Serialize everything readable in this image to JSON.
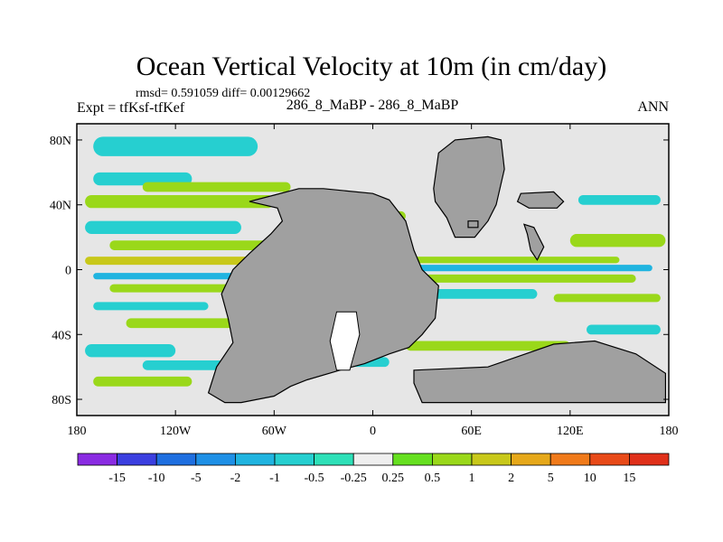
{
  "chart_data": {
    "type": "heatmap",
    "title": "Ocean Vertical Velocity at 10m (in cm/day)",
    "stats_text": "rmsd= 0.591059 diff= 0.00129662",
    "left_label": "Expt = tfKsf-tfKef",
    "center_label": "286_8_MaBP - 286_8_MaBP",
    "right_label": "ANN",
    "xlim": [
      -180,
      180
    ],
    "ylim": [
      -90,
      90
    ],
    "x_ticks": [
      {
        "value": -180,
        "label": "180"
      },
      {
        "value": -120,
        "label": "120W"
      },
      {
        "value": -60,
        "label": "60W"
      },
      {
        "value": 0,
        "label": "0"
      },
      {
        "value": 60,
        "label": "60E"
      },
      {
        "value": 120,
        "label": "120E"
      },
      {
        "value": 180,
        "label": "180"
      }
    ],
    "y_ticks": [
      {
        "value": 80,
        "label": "80N"
      },
      {
        "value": 40,
        "label": "40N"
      },
      {
        "value": 0,
        "label": "0"
      },
      {
        "value": -40,
        "label": "40S"
      },
      {
        "value": -80,
        "label": "80S"
      }
    ],
    "colorbar_labels": [
      "-15",
      "-10",
      "-5",
      "-2",
      "-1",
      "-0.5",
      "-0.25",
      "0.25",
      "0.5",
      "1",
      "2",
      "5",
      "10",
      "15"
    ],
    "colorbar_colors": [
      "#8a2be2",
      "#3b3fe0",
      "#1e6fe0",
      "#1e90e6",
      "#20b4e0",
      "#26cfd0",
      "#2ee0b8",
      "#efefef",
      "#66e020",
      "#9ad81a",
      "#c8c81a",
      "#e6a81a",
      "#f07a1a",
      "#e84a18",
      "#e0301a"
    ],
    "land_color": "#a0a0a0",
    "zero_band_color": "#e6e6e6",
    "bands": [
      {
        "lon": [
          -170,
          -70
        ],
        "lat": [
          70,
          82
        ],
        "level": "-0.5"
      },
      {
        "lon": [
          -170,
          -110
        ],
        "lat": [
          52,
          60
        ],
        "level": "-0.5"
      },
      {
        "lon": [
          -140,
          -50
        ],
        "lat": [
          48,
          54
        ],
        "level": "0.5"
      },
      {
        "lon": [
          -175,
          -60
        ],
        "lat": [
          38,
          46
        ],
        "level": "0.5"
      },
      {
        "lon": [
          -175,
          -80
        ],
        "lat": [
          22,
          30
        ],
        "level": "-0.5"
      },
      {
        "lon": [
          -160,
          -60
        ],
        "lat": [
          12,
          18
        ],
        "level": "0.5"
      },
      {
        "lon": [
          -175,
          -40
        ],
        "lat": [
          3,
          8
        ],
        "level": "1"
      },
      {
        "lon": [
          -170,
          -40
        ],
        "lat": [
          -6,
          -2
        ],
        "level": "-1"
      },
      {
        "lon": [
          -160,
          -60
        ],
        "lat": [
          -14,
          -9
        ],
        "level": "0.5"
      },
      {
        "lon": [
          -170,
          -100
        ],
        "lat": [
          -25,
          -20
        ],
        "level": "-0.5"
      },
      {
        "lon": [
          -150,
          -70
        ],
        "lat": [
          -36,
          -30
        ],
        "level": "0.5"
      },
      {
        "lon": [
          -175,
          -120
        ],
        "lat": [
          -54,
          -46
        ],
        "level": "-0.5"
      },
      {
        "lon": [
          -140,
          -80
        ],
        "lat": [
          -62,
          -56
        ],
        "level": "-0.5"
      },
      {
        "lon": [
          -170,
          -110
        ],
        "lat": [
          -72,
          -66
        ],
        "level": "0.5"
      },
      {
        "lon": [
          10,
          150
        ],
        "lat": [
          4,
          8
        ],
        "level": "0.5"
      },
      {
        "lon": [
          15,
          170
        ],
        "lat": [
          -1,
          3
        ],
        "level": "-1"
      },
      {
        "lon": [
          20,
          160
        ],
        "lat": [
          -8,
          -3
        ],
        "level": "0.5"
      },
      {
        "lon": [
          30,
          100
        ],
        "lat": [
          -18,
          -12
        ],
        "level": "-0.5"
      },
      {
        "lon": [
          110,
          175
        ],
        "lat": [
          -20,
          -15
        ],
        "level": "0.5"
      },
      {
        "lon": [
          20,
          120
        ],
        "lat": [
          -50,
          -44
        ],
        "level": "0.5"
      },
      {
        "lon": [
          130,
          175
        ],
        "lat": [
          -40,
          -34
        ],
        "level": "-0.5"
      },
      {
        "lon": [
          120,
          178
        ],
        "lat": [
          14,
          22
        ],
        "level": "0.5"
      },
      {
        "lon": [
          125,
          175
        ],
        "lat": [
          40,
          46
        ],
        "level": "-0.5"
      },
      {
        "lon": [
          -40,
          10
        ],
        "lat": [
          -60,
          -54
        ],
        "level": "-0.5"
      },
      {
        "lon": [
          -40,
          20
        ],
        "lat": [
          30,
          36
        ],
        "level": "0.5"
      }
    ],
    "land": [
      {
        "name": "americas-africa",
        "lonlat": [
          [
            -75,
            42
          ],
          [
            -60,
            46
          ],
          [
            -45,
            50
          ],
          [
            -30,
            50
          ],
          [
            0,
            47
          ],
          [
            10,
            43
          ],
          [
            20,
            30
          ],
          [
            25,
            12
          ],
          [
            30,
            0
          ],
          [
            40,
            -10
          ],
          [
            38,
            -30
          ],
          [
            30,
            -40
          ],
          [
            22,
            -48
          ],
          [
            10,
            -52
          ],
          [
            -5,
            -58
          ],
          [
            -20,
            -62
          ],
          [
            -40,
            -68
          ],
          [
            -50,
            -72
          ],
          [
            -60,
            -78
          ],
          [
            -80,
            -82
          ],
          [
            -90,
            -82
          ],
          [
            -100,
            -76
          ],
          [
            -95,
            -60
          ],
          [
            -85,
            -45
          ],
          [
            -88,
            -30
          ],
          [
            -92,
            -15
          ],
          [
            -85,
            0
          ],
          [
            -75,
            10
          ],
          [
            -62,
            22
          ],
          [
            -55,
            30
          ],
          [
            -58,
            38
          ]
        ]
      },
      {
        "name": "north-polar-continent",
        "lonlat": [
          [
            37,
            50
          ],
          [
            40,
            72
          ],
          [
            50,
            80
          ],
          [
            70,
            82
          ],
          [
            78,
            80
          ],
          [
            80,
            62
          ],
          [
            75,
            40
          ],
          [
            70,
            30
          ],
          [
            62,
            20
          ],
          [
            50,
            20
          ],
          [
            45,
            32
          ],
          [
            38,
            42
          ]
        ]
      },
      {
        "name": "east-island",
        "lonlat": [
          [
            90,
            47
          ],
          [
            110,
            48
          ],
          [
            116,
            42
          ],
          [
            112,
            38
          ],
          [
            95,
            38
          ],
          [
            88,
            42
          ]
        ]
      },
      {
        "name": "east-peninsula",
        "lonlat": [
          [
            92,
            28
          ],
          [
            98,
            26
          ],
          [
            104,
            14
          ],
          [
            100,
            6
          ],
          [
            96,
            12
          ],
          [
            94,
            22
          ]
        ]
      },
      {
        "name": "south-polar-continent",
        "lonlat": [
          [
            25,
            -62
          ],
          [
            70,
            -60
          ],
          [
            110,
            -46
          ],
          [
            135,
            -44
          ],
          [
            160,
            -52
          ],
          [
            178,
            -64
          ],
          [
            178,
            -82
          ],
          [
            120,
            -82
          ],
          [
            60,
            -82
          ],
          [
            30,
            -82
          ],
          [
            25,
            -70
          ]
        ]
      },
      {
        "name": "small-islet",
        "lonlat": [
          [
            58,
            30
          ],
          [
            64,
            30
          ],
          [
            64,
            26
          ],
          [
            58,
            26
          ]
        ]
      }
    ],
    "inland_seas": [
      {
        "name": "interior-basin",
        "lonlat": [
          [
            -22,
            -26
          ],
          [
            -10,
            -26
          ],
          [
            -8,
            -40
          ],
          [
            -14,
            -62
          ],
          [
            -22,
            -62
          ],
          [
            -26,
            -44
          ]
        ]
      }
    ]
  }
}
